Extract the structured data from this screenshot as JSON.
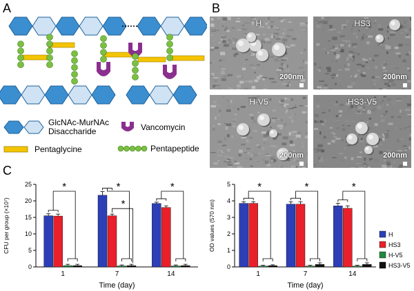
{
  "panel_labels": {
    "a": "A",
    "b": "B",
    "c": "C"
  },
  "legend_a": {
    "disaccharide": "GlcNAc-MurNAc\nDisaccharide",
    "vancomycin": "Vancomycin",
    "pentaglycine": "Pentaglycine",
    "pentapeptide": "Pentapeptide"
  },
  "sem_images": [
    {
      "label": "H",
      "scale": "200nm"
    },
    {
      "label": "HS3",
      "scale": "200nm"
    },
    {
      "label": "H-V5",
      "scale": "200nm"
    },
    {
      "label": "HS3-V5",
      "scale": "200nm"
    }
  ],
  "colors": {
    "hexagon_dark": "#3b8fd0",
    "hexagon_light": "#cfe3f4",
    "pentaglycine": "#f3c400",
    "pentapeptide": "#7bc043",
    "vancomycin": "#8b2f8f",
    "H": "#2c3fb6",
    "HS3": "#e8202a",
    "H-V5": "#1e8a3c",
    "HS3-V5": "#111111"
  },
  "chart_data": [
    {
      "type": "bar",
      "categories": [
        "1",
        "7",
        "14"
      ],
      "series": [
        {
          "name": "H",
          "values": [
            15.5,
            21.7,
            19.2
          ],
          "errors": [
            0.6,
            1.1,
            0.4
          ]
        },
        {
          "name": "HS3",
          "values": [
            15.4,
            15.5,
            18.0
          ],
          "errors": [
            0.6,
            0.5,
            0.5
          ]
        },
        {
          "name": "H-V5",
          "values": [
            0.4,
            0.3,
            0.3
          ],
          "errors": [
            0.4,
            0.3,
            0.3
          ]
        },
        {
          "name": "HS3-V5",
          "values": [
            0.4,
            0.4,
            0.4
          ],
          "errors": [
            0.4,
            0.4,
            0.4
          ]
        }
      ],
      "xlabel": "Time (day)",
      "ylabel": "CFU per group (×10⁷)",
      "ylim": [
        0,
        25
      ],
      "yticks": [
        0,
        5,
        10,
        15,
        20,
        25
      ],
      "significance": "*"
    },
    {
      "type": "bar",
      "categories": [
        "1",
        "7",
        "14"
      ],
      "series": [
        {
          "name": "H",
          "values": [
            3.85,
            3.8,
            3.7
          ],
          "errors": [
            0.1,
            0.15,
            0.15
          ]
        },
        {
          "name": "HS3",
          "values": [
            3.85,
            3.8,
            3.55
          ],
          "errors": [
            0.1,
            0.15,
            0.15
          ]
        },
        {
          "name": "H-V5",
          "values": [
            0.05,
            0.05,
            0.05
          ],
          "errors": [
            0.05,
            0.05,
            0.05
          ]
        },
        {
          "name": "HS3-V5",
          "values": [
            0.08,
            0.15,
            0.15
          ],
          "errors": [
            0.05,
            0.1,
            0.1
          ]
        }
      ],
      "xlabel": "Time (day)",
      "ylabel": "OD values (570 nm)",
      "ylim": [
        0,
        5
      ],
      "yticks": [
        0,
        1,
        2,
        3,
        4,
        5
      ],
      "significance": "*"
    }
  ]
}
